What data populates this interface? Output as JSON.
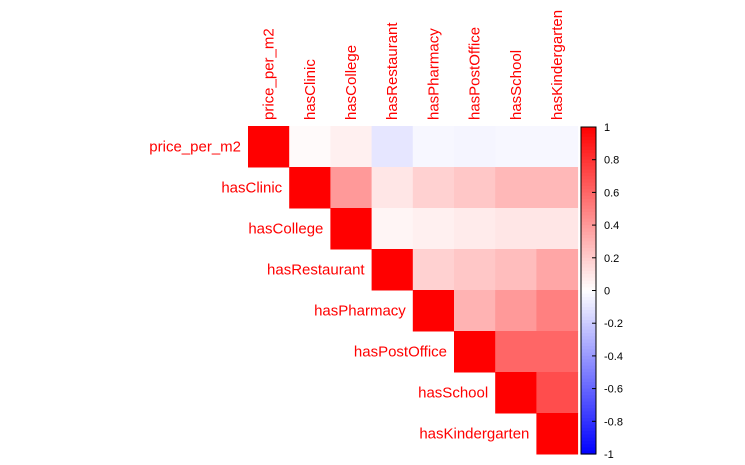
{
  "chart_data": {
    "type": "heatmap",
    "layout": "upper-triangle correlation matrix",
    "variables": [
      "price_per_m2",
      "hasClinic",
      "hasCollege",
      "hasRestaurant",
      "hasPharmacy",
      "hasPostOffice",
      "hasSchool",
      "hasKindergarten"
    ],
    "matrix": [
      [
        1.0,
        0.02,
        0.06,
        -0.1,
        -0.03,
        -0.04,
        -0.03,
        -0.03
      ],
      [
        null,
        1.0,
        0.4,
        0.1,
        0.18,
        0.22,
        0.28,
        0.28
      ],
      [
        null,
        null,
        1.0,
        0.04,
        0.06,
        0.08,
        0.1,
        0.1
      ],
      [
        null,
        null,
        null,
        1.0,
        0.18,
        0.22,
        0.26,
        0.35
      ],
      [
        null,
        null,
        null,
        null,
        1.0,
        0.3,
        0.4,
        0.5
      ],
      [
        null,
        null,
        null,
        null,
        null,
        1.0,
        0.6,
        0.6
      ],
      [
        null,
        null,
        null,
        null,
        null,
        null,
        1.0,
        0.7
      ],
      [
        null,
        null,
        null,
        null,
        null,
        null,
        null,
        1.0
      ]
    ],
    "colorbar": {
      "min": -1,
      "max": 1,
      "ticks": [
        "1",
        "0.8",
        "0.6",
        "0.4",
        "0.2",
        "0",
        "-0.2",
        "-0.4",
        "-0.6",
        "-0.8",
        "-1"
      ],
      "low_color": "#0000ff",
      "mid_color": "#ffffff",
      "high_color": "#ff0000"
    },
    "label_color": "#ff0000",
    "tick_label_color": "#000000"
  }
}
